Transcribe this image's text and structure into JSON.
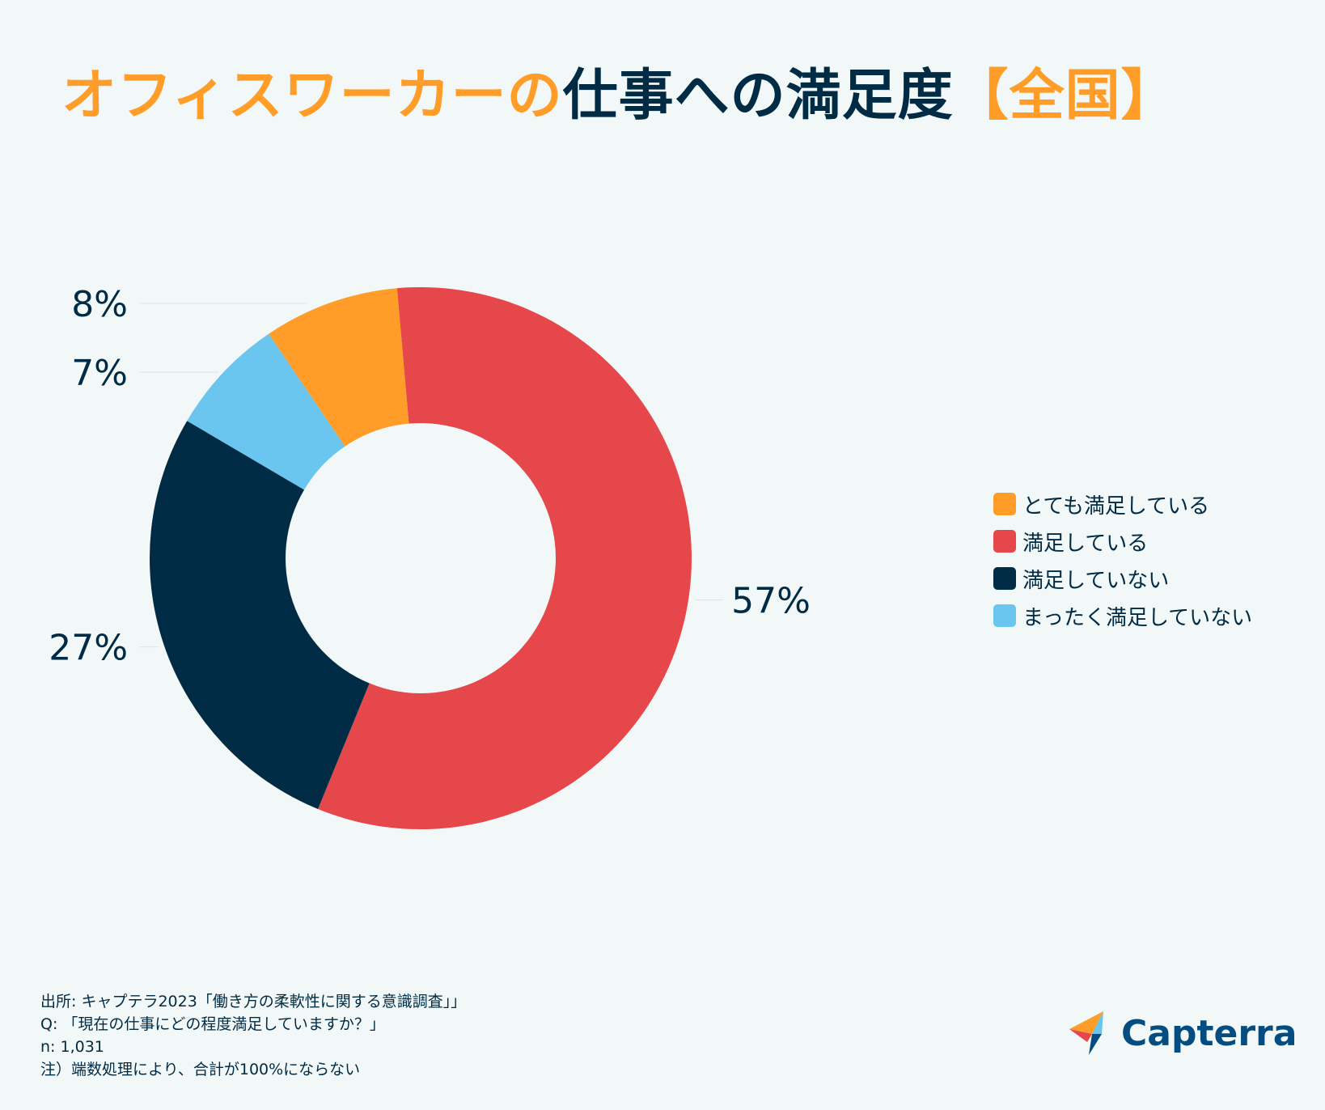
{
  "title": {
    "part1": "オフィスワーカーの",
    "part2": "仕事への満足度",
    "part3": "【全国】"
  },
  "chart_data": {
    "type": "pie",
    "subtype": "donut",
    "title": "オフィスワーカーの仕事への満足度【全国】",
    "categories": [
      "とても満足している",
      "満足している",
      "満足していない",
      "まったく満足していない"
    ],
    "values": [
      8,
      57,
      27,
      7
    ],
    "value_labels": [
      "8%",
      "57%",
      "27%",
      "7%"
    ],
    "colors": [
      "#ff9d28",
      "#e5474b",
      "#002b44",
      "#6ac6ee"
    ],
    "legend_position": "right"
  },
  "legend": {
    "items": [
      {
        "label": "とても満足している",
        "color": "#ff9d28"
      },
      {
        "label": "満足している",
        "color": "#e5474b"
      },
      {
        "label": "満足していない",
        "color": "#002b44"
      },
      {
        "label": "まったく満足していない",
        "color": "#6ac6ee"
      }
    ]
  },
  "footer": {
    "source": "出所: キャプテラ2023「働き方の柔軟性に関する意識調査」」",
    "question": "Q: 「現在の仕事にどの程度満足していますか？」",
    "n": "n: 1,031",
    "note": "注）端数処理により、合計が100%にならない"
  },
  "logo": {
    "text": "Capterra"
  }
}
